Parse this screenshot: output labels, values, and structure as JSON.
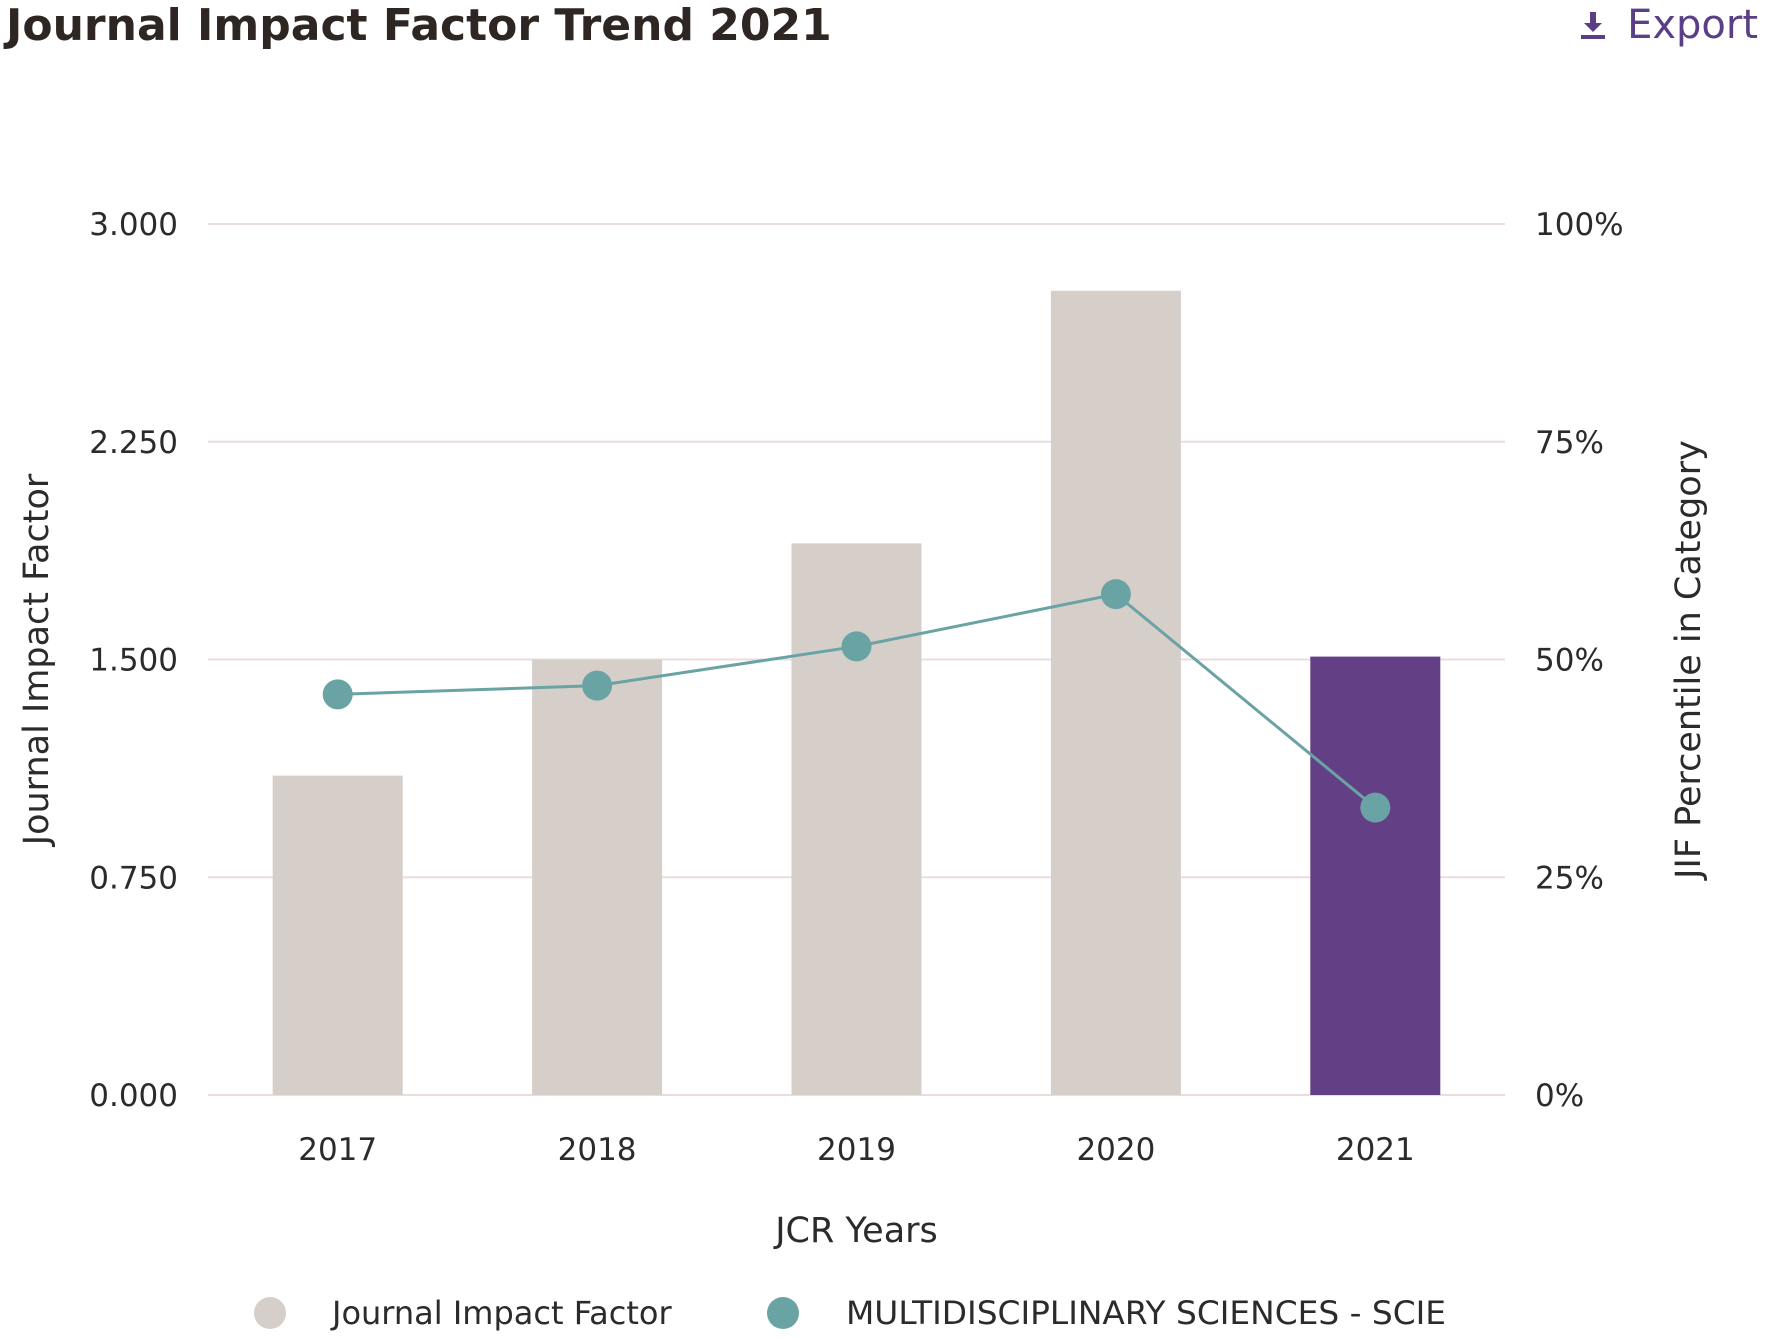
{
  "header": {
    "title": "Journal Impact Factor Trend 2021",
    "export_label": "Export",
    "export_icon": "download-icon"
  },
  "colors": {
    "bar_default": "#d5cec9",
    "bar_highlight": "#633f85",
    "line": "#6aa3a3",
    "grid": "#eadddd",
    "accent": "#5b3f86",
    "text": "#2b2b2b"
  },
  "chart_data": {
    "type": "bar",
    "categories": [
      "2017",
      "2018",
      "2019",
      "2020",
      "2021"
    ],
    "xlabel": "JCR Years",
    "ylabel": "Journal Impact Factor",
    "ylabel_right": "JIF Percentile in Category",
    "ylim": [
      0,
      3
    ],
    "ylim_right": [
      0,
      100
    ],
    "yticks": [
      "0.000",
      "0.750",
      "1.500",
      "2.250",
      "3.000"
    ],
    "yticks_right": [
      "0%",
      "25%",
      "50%",
      "75%",
      "100%"
    ],
    "grid": true,
    "legend_position": "bottom",
    "series": [
      {
        "name": "Journal Impact Factor",
        "type": "bar",
        "axis": "left",
        "values": [
          1.1,
          1.5,
          1.9,
          2.77,
          1.51
        ],
        "highlight_index": 4
      },
      {
        "name": "MULTIDISCIPLINARY SCIENCES - SCIE",
        "type": "line",
        "axis": "right",
        "values": [
          46,
          47,
          51.5,
          57.5,
          33
        ]
      }
    ]
  }
}
